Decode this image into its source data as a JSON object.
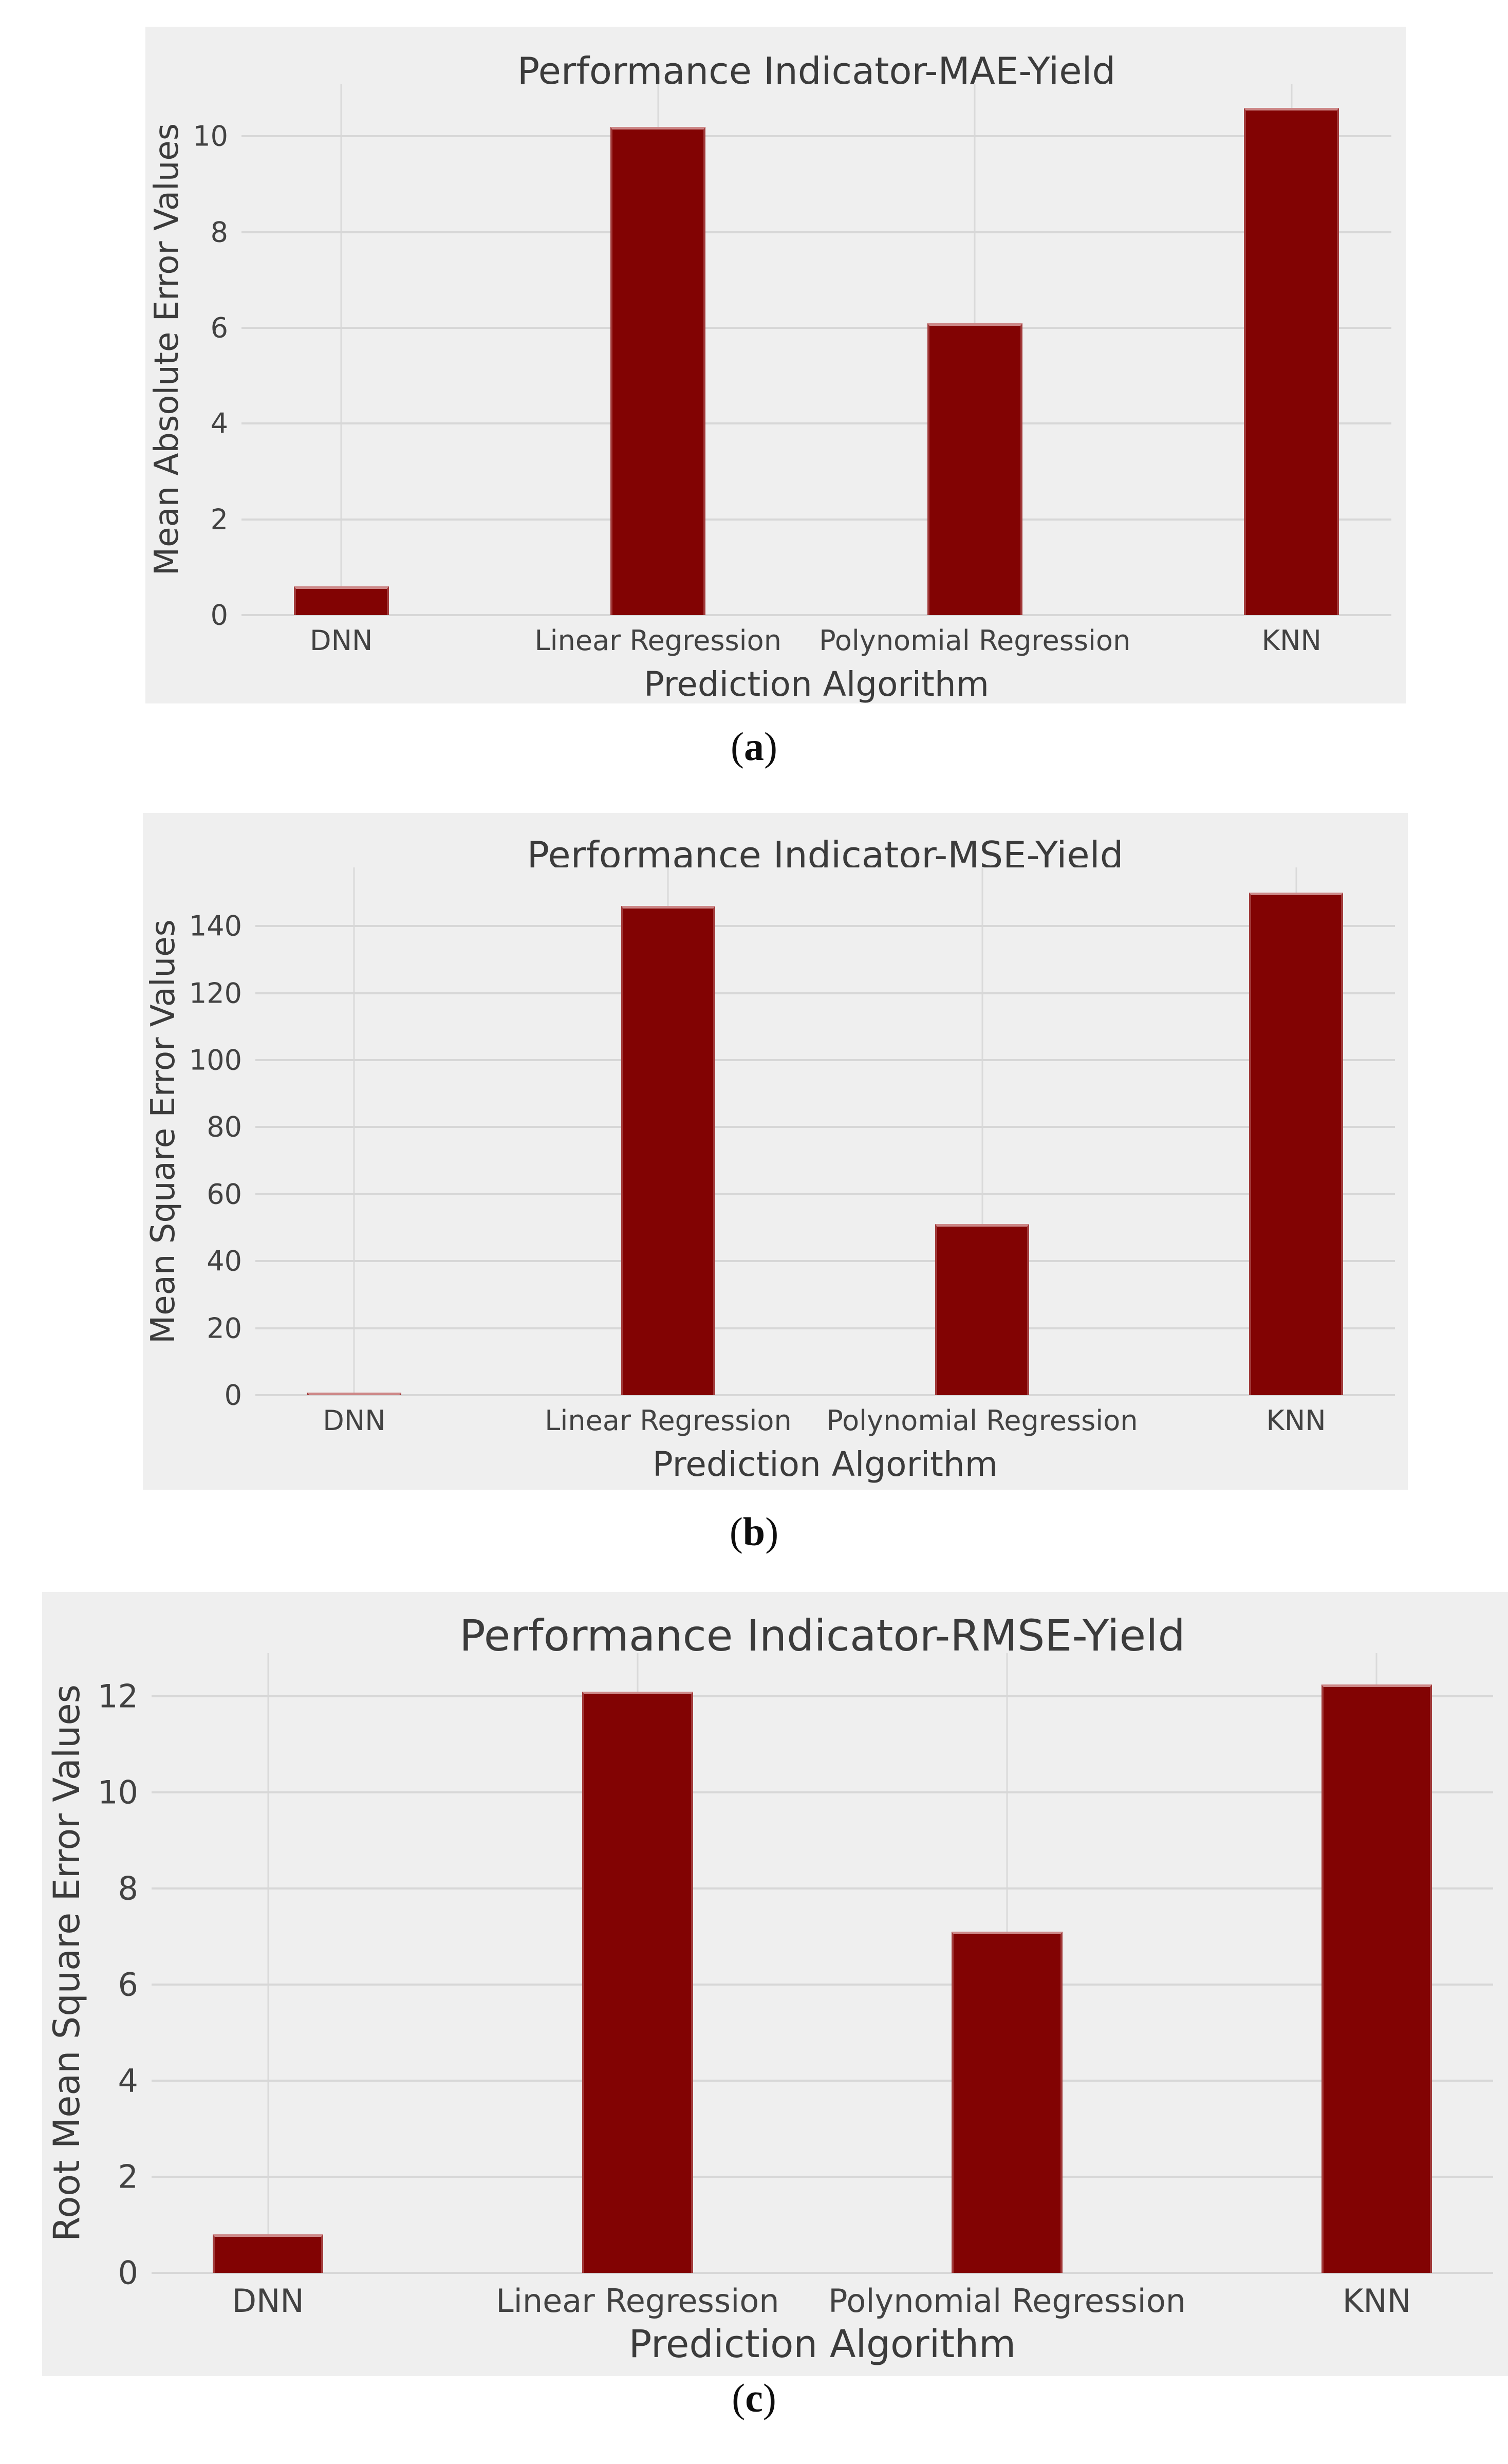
{
  "page": {
    "background": "#ffffff",
    "description_colors": {
      "bar_fill": "#820303",
      "bar_edge_highlight": "#dba0a0",
      "figure_background": "#efefef",
      "gridline": "#d8d8d8",
      "text": "#3b3b3b"
    }
  },
  "chart_data": [
    {
      "type": "bar",
      "title": "Performance Indicator-MAE-Yield",
      "xlabel": "Prediction Algorithm",
      "ylabel": "Mean Absolute Error Values",
      "categories": [
        "DNN",
        "Linear Regression",
        "Polynomial Regression",
        "KNN"
      ],
      "values": [
        0.6,
        10.2,
        6.1,
        10.6
      ],
      "yticks": [
        0,
        2,
        4,
        6,
        8,
        10
      ],
      "ylim": [
        0,
        11.1
      ],
      "grid": "on",
      "legend": "none",
      "bar_color": "#820303",
      "caption": {
        "open": "(",
        "letter": "a",
        "close": ")"
      }
    },
    {
      "type": "bar",
      "title": "Performance Indicator-MSE-Yield",
      "xlabel": "Prediction Algorithm",
      "ylabel": "Mean Square Error Values",
      "categories": [
        "DNN",
        "Linear Regression",
        "Polynomial Regression",
        "KNN"
      ],
      "values": [
        0.6,
        146,
        51,
        150
      ],
      "yticks": [
        0,
        20,
        40,
        60,
        80,
        100,
        120,
        140
      ],
      "ylim": [
        0,
        157.5
      ],
      "grid": "on",
      "legend": "none",
      "bar_color": "#820303",
      "caption": {
        "open": "(",
        "letter": "b",
        "close": ")"
      }
    },
    {
      "type": "bar",
      "title": "Performance Indicator-RMSE-Yield",
      "xlabel": "Prediction Algorithm",
      "ylabel": "Root Mean Square Error Values",
      "categories": [
        "DNN",
        "Linear Regression",
        "Polynomial Regression",
        "KNN"
      ],
      "values": [
        0.8,
        12.1,
        7.1,
        12.25
      ],
      "yticks": [
        0,
        2,
        4,
        6,
        8,
        10,
        12
      ],
      "ylim": [
        0,
        12.9
      ],
      "grid": "on",
      "legend": "none",
      "bar_color": "#820303",
      "caption": {
        "open": "(",
        "letter": "c",
        "close": ")"
      }
    }
  ]
}
